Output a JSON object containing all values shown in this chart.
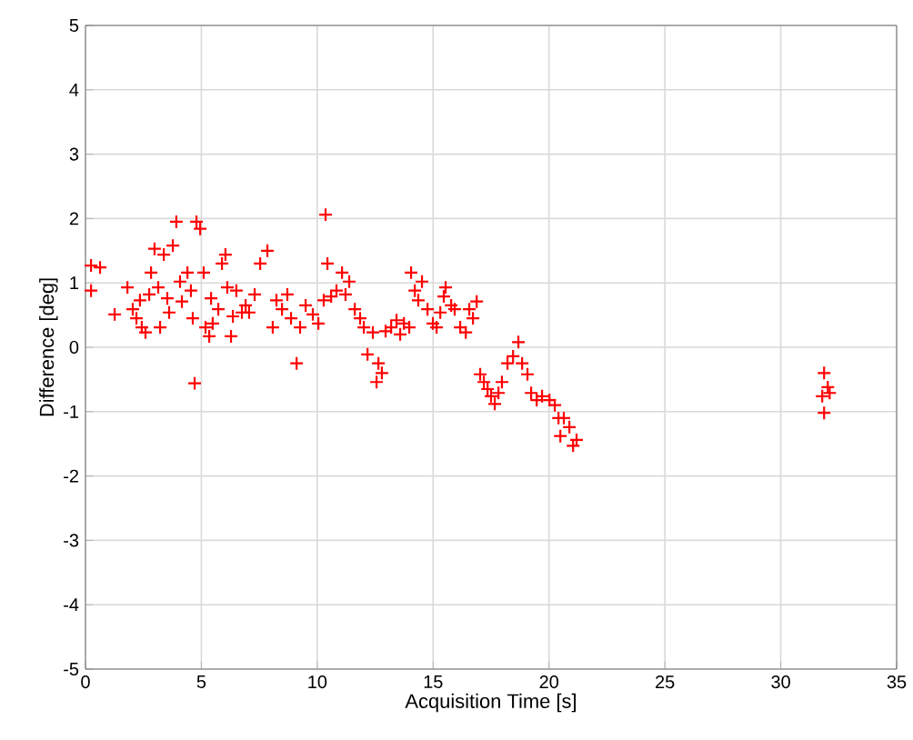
{
  "chart_data": {
    "type": "scatter",
    "xlabel": "Acquisition Time [s]",
    "ylabel": "Difference [deg]",
    "xlim": [
      0,
      35
    ],
    "xticks": [
      0,
      5,
      10,
      15,
      20,
      25,
      30,
      35
    ],
    "ylim": [
      -5,
      5
    ],
    "yticks": [
      -5,
      -4,
      -3,
      -2,
      -1,
      0,
      1,
      2,
      3,
      4,
      5
    ],
    "grid": true,
    "marker": "cross",
    "color": "#ff0000",
    "x": [
      0.24,
      0.63,
      0.24,
      1.26,
      1.81,
      2.04,
      2.2,
      2.35,
      2.43,
      2.59,
      2.75,
      2.83,
      2.98,
      3.14,
      3.22,
      3.38,
      3.53,
      3.61,
      3.77,
      3.92,
      4.08,
      4.16,
      4.4,
      4.55,
      4.63,
      4.71,
      4.79,
      4.95,
      5.1,
      5.18,
      5.34,
      5.42,
      5.49,
      5.73,
      5.89,
      6.04,
      6.12,
      6.28,
      6.36,
      6.51,
      6.75,
      6.91,
      7.06,
      7.3,
      7.54,
      7.85,
      8.08,
      8.24,
      8.48,
      8.71,
      8.87,
      9.11,
      9.26,
      9.5,
      9.81,
      10.05,
      10.28,
      10.36,
      10.44,
      10.6,
      10.83,
      11.07,
      11.22,
      11.38,
      11.62,
      11.85,
      12.01,
      12.17,
      12.4,
      12.56,
      12.64,
      12.79,
      12.95,
      13.19,
      13.42,
      13.58,
      13.74,
      13.97,
      14.05,
      14.21,
      14.36,
      14.52,
      14.76,
      14.99,
      15.15,
      15.31,
      15.46,
      15.54,
      15.78,
      15.93,
      16.17,
      16.41,
      16.56,
      16.72,
      16.88,
      17.03,
      17.19,
      17.35,
      17.5,
      17.66,
      17.82,
      17.97,
      18.21,
      18.45,
      18.68,
      18.84,
      19.07,
      19.23,
      19.47,
      19.7,
      20.02,
      20.25,
      20.41,
      20.49,
      20.64,
      20.88,
      21.04,
      21.19,
      31.87,
      32.03,
      31.79,
      32.11,
      31.87
    ],
    "values": [
      1.27,
      1.24,
      0.88,
      0.51,
      0.93,
      0.59,
      0.45,
      0.73,
      0.31,
      0.23,
      0.82,
      1.16,
      1.53,
      0.93,
      0.31,
      1.44,
      0.76,
      0.54,
      1.58,
      1.95,
      1.02,
      0.71,
      1.16,
      0.88,
      0.45,
      -0.56,
      1.95,
      1.84,
      1.16,
      0.31,
      0.17,
      0.76,
      0.37,
      0.59,
      1.3,
      1.44,
      0.93,
      0.17,
      0.48,
      0.88,
      0.54,
      0.65,
      0.54,
      0.82,
      1.3,
      1.5,
      0.31,
      0.73,
      0.59,
      0.82,
      0.45,
      -0.25,
      0.31,
      0.65,
      0.51,
      0.37,
      0.73,
      2.06,
      1.3,
      0.79,
      0.88,
      1.16,
      0.82,
      1.02,
      0.59,
      0.45,
      0.31,
      -0.11,
      0.23,
      -0.54,
      -0.25,
      -0.4,
      0.25,
      0.31,
      0.42,
      0.2,
      0.37,
      0.31,
      1.16,
      0.88,
      0.73,
      1.02,
      0.59,
      0.37,
      0.31,
      0.54,
      0.79,
      0.93,
      0.65,
      0.59,
      0.31,
      0.23,
      0.59,
      0.45,
      0.71,
      -0.42,
      -0.54,
      -0.65,
      -0.76,
      -0.88,
      -0.71,
      -0.54,
      -0.25,
      -0.14,
      0.08,
      -0.25,
      -0.42,
      -0.71,
      -0.82,
      -0.76,
      -0.82,
      -0.9,
      -1.1,
      -1.38,
      -1.1,
      -1.24,
      -1.53,
      -1.44,
      -0.4,
      -0.62,
      -0.76,
      -0.71,
      -1.02
    ]
  }
}
